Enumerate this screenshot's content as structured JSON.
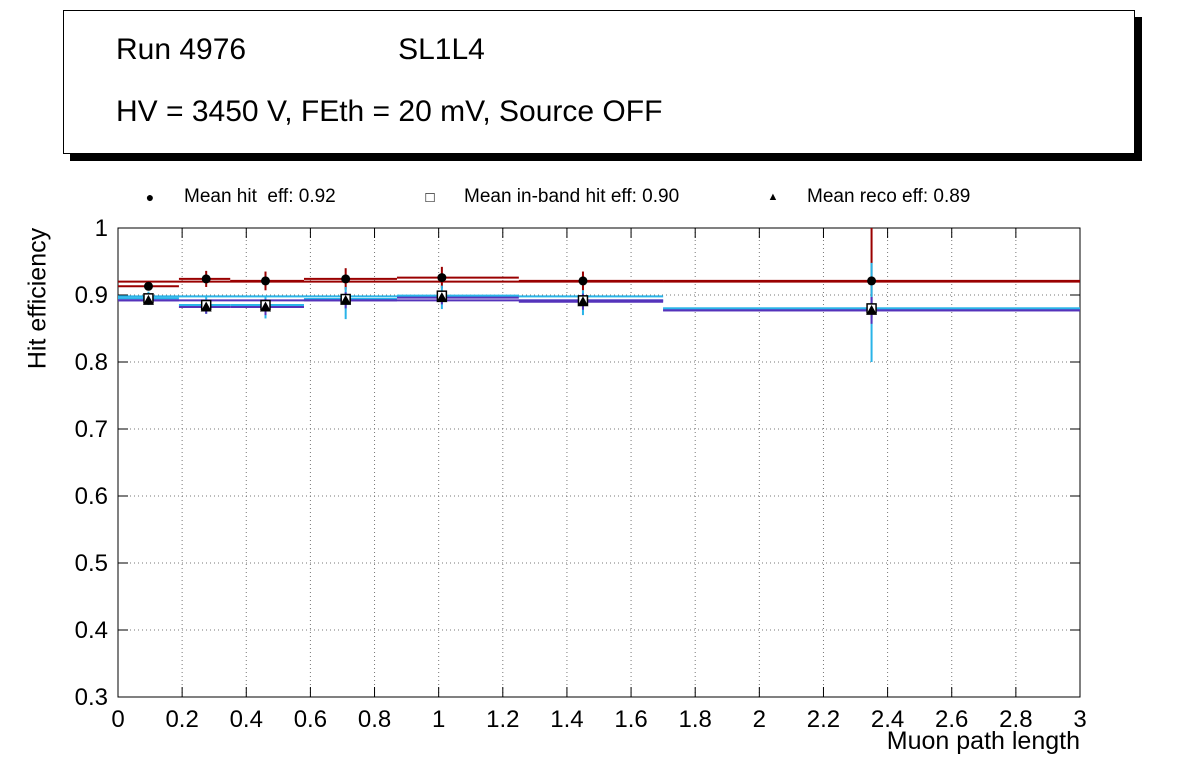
{
  "title_box": {
    "run": "Run 4976",
    "chamber": "SL1L4",
    "conditions": "HV = 3450 V, FEth = 20 mV, Source OFF"
  },
  "legend": {
    "entries": [
      {
        "glyph": "●",
        "marker": "filled-circle",
        "label": "Mean hit  eff: 0.92"
      },
      {
        "glyph": "□",
        "marker": "open-square",
        "label": "Mean in-band hit eff: 0.90"
      },
      {
        "glyph": "▲",
        "marker": "filled-triangle",
        "label": "Mean reco eff: 0.89"
      }
    ]
  },
  "chart_data": {
    "type": "scatter",
    "title": "",
    "xlabel": "Muon path length",
    "ylabel": "Hit efficiency",
    "xlim": [
      0,
      3
    ],
    "ylim": [
      0.3,
      1
    ],
    "grid": "dotted",
    "legend_position": "top",
    "xticks": [
      0,
      0.2,
      0.4,
      0.6,
      0.8,
      1,
      1.2,
      1.4,
      1.6,
      1.8,
      2,
      2.2,
      2.4,
      2.6,
      2.8,
      3
    ],
    "xtick_labels": [
      "0",
      "0.2",
      "0.4",
      "0.6",
      "0.8",
      "1",
      "1.2",
      "1.4",
      "1.6",
      "1.8",
      "2",
      "2.2",
      "2.4",
      "2.6",
      "2.8",
      "3"
    ],
    "yticks": [
      0.3,
      0.4,
      0.5,
      0.6,
      0.7,
      0.8,
      0.9,
      1
    ],
    "ytick_labels": [
      "0.3",
      "0.4",
      "0.5",
      "0.6",
      "0.7",
      "0.8",
      "0.9",
      "1"
    ],
    "series": [
      {
        "name": "Mean hit eff",
        "mean": 0.92,
        "marker": "filled-circle",
        "marker_color": "#000000",
        "color": "#9a0000",
        "lines": [
          {
            "x1": 0,
            "x2": 3,
            "y": 0.92
          }
        ],
        "points": [
          {
            "x": 0.095,
            "y": 0.913,
            "eyl": 0.006,
            "eyh": 0.006,
            "xlow": 0.0,
            "xhigh": 0.19
          },
          {
            "x": 0.275,
            "y": 0.924,
            "eyl": 0.012,
            "eyh": 0.012,
            "xlow": 0.19,
            "xhigh": 0.35
          },
          {
            "x": 0.46,
            "y": 0.921,
            "eyl": 0.014,
            "eyh": 0.014,
            "xlow": 0.35,
            "xhigh": 0.58
          },
          {
            "x": 0.71,
            "y": 0.924,
            "eyl": 0.016,
            "eyh": 0.016,
            "xlow": 0.58,
            "xhigh": 0.87
          },
          {
            "x": 1.01,
            "y": 0.926,
            "eyl": 0.016,
            "eyh": 0.016,
            "xlow": 0.87,
            "xhigh": 1.25
          },
          {
            "x": 1.45,
            "y": 0.921,
            "eyl": 0.014,
            "eyh": 0.014,
            "xlow": 1.25,
            "xhigh": 1.7
          },
          {
            "x": 2.35,
            "y": 0.921,
            "eyl": 0.055,
            "eyh": 0.079,
            "xlow": 1.7,
            "xhigh": 3.0
          }
        ]
      },
      {
        "name": "Mean in-band hit eff",
        "mean": 0.9,
        "marker": "open-square",
        "marker_color": "#000000",
        "color": "#2ab4e8",
        "lines": [
          {
            "x1": 0,
            "x2": 1.7,
            "y": 0.898
          },
          {
            "x1": 1.7,
            "x2": 3,
            "y": 0.88
          }
        ],
        "points": [
          {
            "x": 0.095,
            "y": 0.895,
            "eyl": 0.01,
            "eyh": 0.01,
            "xlow": 0.0,
            "xhigh": 0.19
          },
          {
            "x": 0.275,
            "y": 0.885,
            "eyl": 0.013,
            "eyh": 0.013,
            "xlow": 0.19,
            "xhigh": 0.35
          },
          {
            "x": 0.46,
            "y": 0.885,
            "eyl": 0.02,
            "eyh": 0.012,
            "xlow": 0.35,
            "xhigh": 0.58
          },
          {
            "x": 0.71,
            "y": 0.894,
            "eyl": 0.03,
            "eyh": 0.018,
            "xlow": 0.58,
            "xhigh": 0.87
          },
          {
            "x": 1.01,
            "y": 0.899,
            "eyl": 0.02,
            "eyh": 0.015,
            "xlow": 0.87,
            "xhigh": 1.25
          },
          {
            "x": 1.45,
            "y": 0.892,
            "eyl": 0.022,
            "eyh": 0.015,
            "xlow": 1.25,
            "xhigh": 1.7
          },
          {
            "x": 2.35,
            "y": 0.88,
            "eyl": 0.08,
            "eyh": 0.068,
            "xlow": 1.7,
            "xhigh": 3.0
          }
        ]
      },
      {
        "name": "Mean reco eff",
        "mean": 0.89,
        "marker": "filled-triangle",
        "marker_color": "#000000",
        "color": "#5533bb",
        "lines": [
          {
            "x1": 0,
            "x2": 1.7,
            "y": 0.892
          },
          {
            "x1": 1.7,
            "x2": 3,
            "y": 0.877
          }
        ],
        "points": [
          {
            "x": 0.095,
            "y": 0.892,
            "eyl": 0.006,
            "eyh": 0.006,
            "xlow": 0.0,
            "xhigh": 0.19
          },
          {
            "x": 0.275,
            "y": 0.882,
            "eyl": 0.01,
            "eyh": 0.01,
            "xlow": 0.19,
            "xhigh": 0.35
          },
          {
            "x": 0.46,
            "y": 0.882,
            "eyl": 0.012,
            "eyh": 0.012,
            "xlow": 0.35,
            "xhigh": 0.58
          },
          {
            "x": 0.71,
            "y": 0.892,
            "eyl": 0.012,
            "eyh": 0.012,
            "xlow": 0.58,
            "xhigh": 0.87
          },
          {
            "x": 1.01,
            "y": 0.896,
            "eyl": 0.01,
            "eyh": 0.01,
            "xlow": 0.87,
            "xhigh": 1.25
          },
          {
            "x": 1.45,
            "y": 0.89,
            "eyl": 0.012,
            "eyh": 0.012,
            "xlow": 1.25,
            "xhigh": 1.7
          },
          {
            "x": 2.35,
            "y": 0.877,
            "eyl": 0.02,
            "eyh": 0.02,
            "xlow": 1.7,
            "xhigh": 3.0
          }
        ]
      }
    ]
  }
}
